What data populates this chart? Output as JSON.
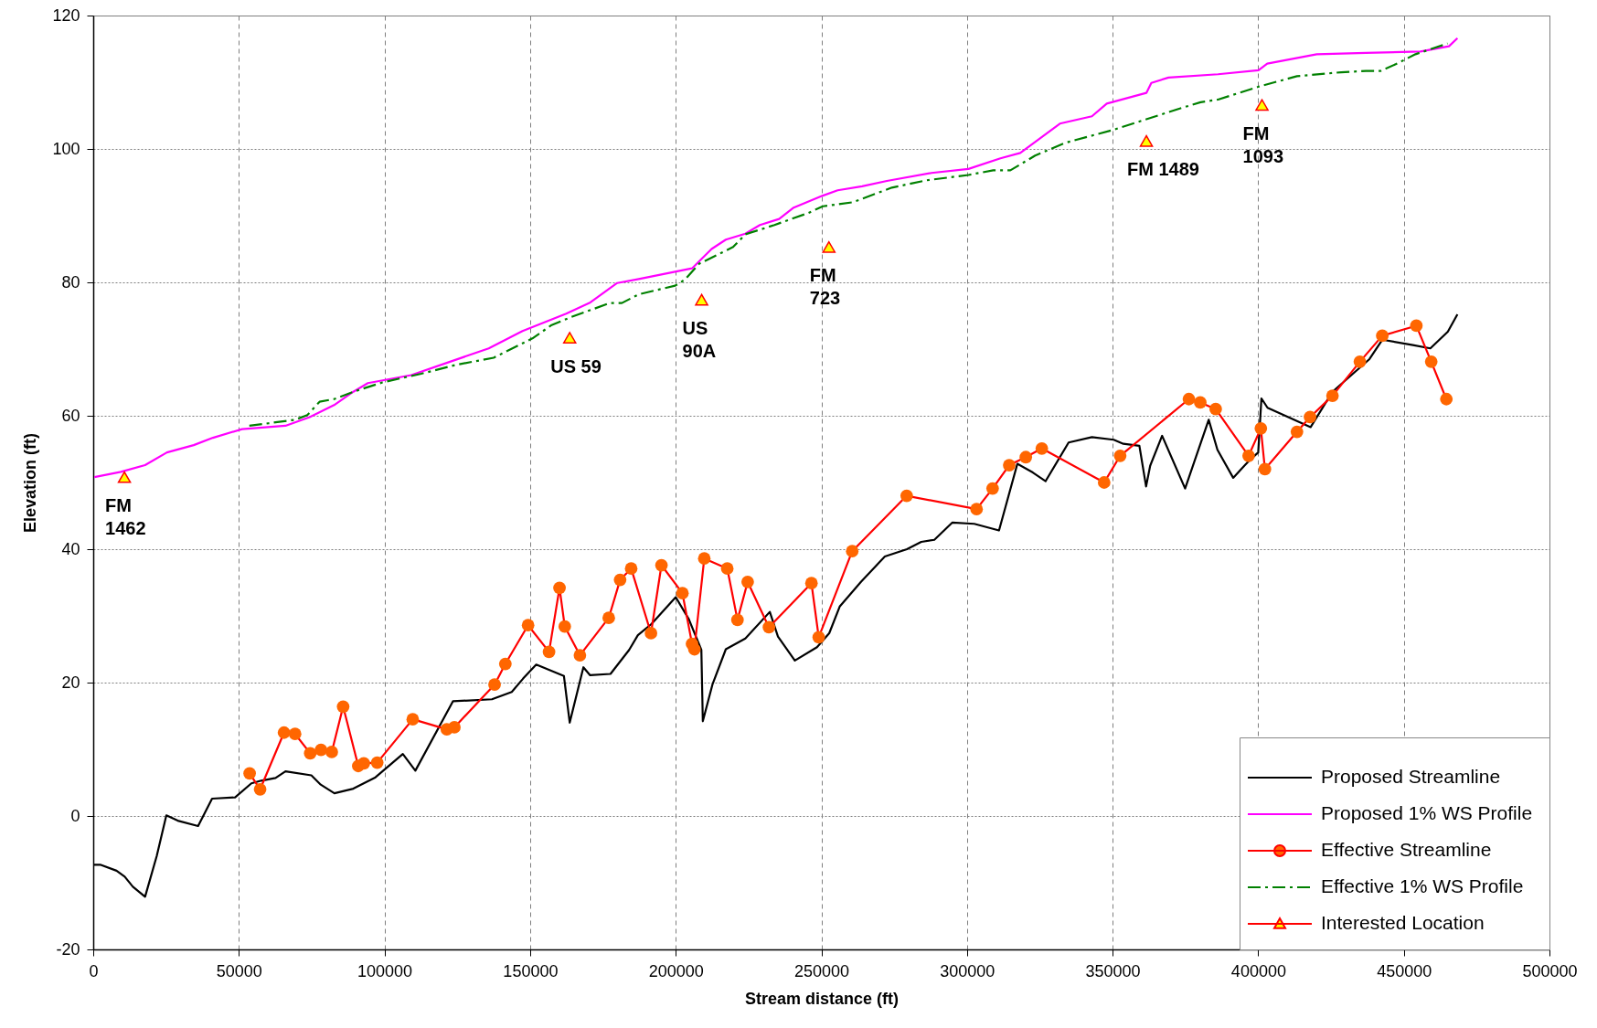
{
  "chart_data": {
    "type": "line",
    "xlabel": "Stream distance (ft)",
    "ylabel": "Elevation (ft)",
    "xlim": [
      0,
      500000
    ],
    "xticks": [
      0,
      50000,
      100000,
      150000,
      200000,
      250000,
      300000,
      350000,
      400000,
      450000,
      500000
    ],
    "ylim": [
      -20,
      120
    ],
    "yticks": [
      -20,
      0,
      20,
      40,
      60,
      80,
      100,
      120
    ],
    "grid": true,
    "legend": "bottom right",
    "series": [
      {
        "name": "Proposed Streamline",
        "color": "#000000",
        "line_style": "solid",
        "x": [
          0,
          2400,
          8000,
          10800,
          13600,
          17800,
          21800,
          25100,
          29000,
          36000,
          40800,
          48700,
          54300,
          57700,
          62600,
          66000,
          74900,
          78100,
          82800,
          89300,
          96900,
          106300,
          110600,
          123500,
          136900,
          143700,
          147600,
          152100,
          161600,
          163600,
          168300,
          170600,
          177600,
          184000,
          187000,
          191700,
          200000,
          204500,
          208800,
          209300,
          212600,
          217200,
          223900,
          232300,
          235100,
          240900,
          248500,
          252700,
          256300,
          263600,
          271800,
          279400,
          284300,
          288800,
          295000,
          302500,
          311000,
          317300,
          322600,
          327000,
          334900,
          342900,
          350400,
          353700,
          359200,
          361500,
          362900,
          367000,
          374900,
          383000,
          386000,
          391400,
          396700,
          400000,
          401100,
          403200,
          418000,
          425500,
          438200,
          442600,
          453100,
          459100,
          465100,
          468400
        ],
        "values": [
          -7.3,
          -7.3,
          -8.2,
          -9.1,
          -10.6,
          -12.1,
          -6.0,
          0.1,
          -0.7,
          -1.5,
          2.6,
          2.8,
          4.9,
          5.3,
          5.7,
          6.7,
          6.1,
          4.7,
          3.4,
          4.1,
          5.8,
          9.3,
          6.8,
          17.2,
          17.5,
          18.6,
          20.6,
          22.7,
          21.0,
          14.0,
          22.3,
          21.1,
          21.3,
          24.9,
          27.1,
          28.8,
          32.8,
          29.5,
          24.9,
          14.2,
          19.7,
          25.0,
          26.6,
          30.6,
          26.9,
          23.3,
          25.3,
          27.4,
          31.4,
          35.1,
          38.9,
          40.0,
          41.1,
          41.4,
          44.0,
          43.8,
          42.8,
          52.8,
          51.5,
          50.2,
          56.0,
          56.8,
          56.4,
          55.8,
          55.5,
          49.4,
          52.5,
          57.0,
          49.1,
          59.4,
          54.9,
          50.7,
          53.2,
          54.5,
          62.6,
          61.2,
          58.3,
          63.6,
          68.5,
          71.4,
          70.6,
          70.1,
          72.6,
          75.2
        ]
      },
      {
        "name": "Proposed 1% WS Profile",
        "color": "#ff00ff",
        "line_style": "solid",
        "x": [
          400,
          9500,
          17800,
          25300,
          34500,
          41100,
          51100,
          66000,
          74300,
          82700,
          89300,
          94300,
          109200,
          122500,
          135800,
          147400,
          162400,
          170700,
          179900,
          187300,
          205600,
          212300,
          217200,
          223900,
          228900,
          235500,
          240500,
          250500,
          255600,
          264000,
          272500,
          287800,
          300500,
          311500,
          318300,
          325100,
          331900,
          342900,
          348000,
          361600,
          363300,
          369200,
          386200,
          400100,
          403100,
          420100,
          437000,
          455700,
          465500,
          468400
        ],
        "values": [
          50.8,
          51.6,
          52.6,
          54.5,
          55.6,
          56.7,
          58.0,
          58.5,
          59.8,
          61.6,
          63.6,
          64.9,
          66.1,
          68.1,
          70.1,
          72.7,
          75.3,
          77.0,
          79.9,
          80.5,
          82.1,
          85.0,
          86.4,
          87.3,
          88.6,
          89.5,
          91.2,
          93.0,
          93.8,
          94.4,
          95.2,
          96.4,
          97.0,
          98.6,
          99.4,
          101.6,
          103.8,
          104.9,
          106.8,
          108.4,
          109.9,
          110.7,
          111.2,
          111.8,
          112.8,
          114.2,
          114.4,
          114.6,
          115.4,
          116.6
        ]
      },
      {
        "name": "Effective Streamline",
        "color": "#ff0000",
        "line_style": "solid",
        "marker": "circle",
        "x": [
          53700,
          57300,
          65500,
          69300,
          74500,
          78200,
          81900,
          85800,
          91000,
          92900,
          97500,
          109700,
          121400,
          124000,
          137800,
          141500,
          149300,
          156500,
          160100,
          161900,
          167100,
          177000,
          180900,
          184700,
          191500,
          195100,
          202300,
          205600,
          206400,
          209800,
          217700,
          221200,
          224700,
          232000,
          246600,
          249100,
          260600,
          279300,
          303300,
          308800,
          314500,
          320200,
          325700,
          347100,
          352600,
          376200,
          380100,
          385400,
          396700,
          400900,
          402300,
          413300,
          417800,
          425500,
          434900,
          442600,
          454300,
          459400,
          464600
        ],
        "values": [
          6.4,
          4.0,
          12.5,
          12.3,
          9.4,
          9.9,
          9.6,
          16.4,
          7.5,
          7.9,
          8.0,
          14.5,
          13.0,
          13.3,
          19.7,
          22.8,
          28.6,
          24.6,
          34.2,
          28.4,
          24.1,
          29.7,
          35.4,
          37.1,
          27.4,
          37.6,
          33.4,
          25.8,
          25.0,
          38.6,
          37.1,
          29.4,
          35.1,
          28.3,
          34.9,
          26.8,
          39.7,
          48.0,
          46.0,
          49.1,
          52.6,
          53.8,
          55.1,
          50.0,
          54.0,
          62.5,
          62.0,
          61.0,
          54.0,
          58.1,
          52.0,
          57.6,
          59.8,
          63.0,
          68.1,
          72.0,
          73.5,
          68.1,
          62.5
        ],
        "colors": [
          "#ff6600",
          "#ff6600",
          "#ff6600",
          "#ff6600",
          "#ff6600",
          "#ff6600",
          "#ff6600",
          "#ff6600",
          "#ff6600",
          "#ff6600",
          "#ff6600",
          "#ff6600",
          "#ff6600",
          "#ff6600",
          "#ff6600",
          "#ff6600",
          "#ff6600",
          "#ff6600",
          "#ff6600",
          "#ff6600",
          "#ff6600",
          "#ff6600",
          "#ff6600",
          "#ff6600",
          "#ff6600",
          "#ff6600",
          "#ff6600",
          "#ff6600",
          "#ff6600",
          "#ff6600",
          "#ff6600",
          "#ff6600",
          "#ff6600",
          "#ff6600",
          "#ff6600",
          "#ff6600",
          "#ff6600",
          "#ff6600",
          "#ff6600",
          "#ff6600",
          "#ff6600",
          "#ff6600",
          "#ff6600",
          "#ff6600",
          "#ff6600",
          "#ff6600",
          "#ff6600",
          "#ff6600",
          "#ff6600",
          "#ff6600",
          "#ff6600",
          "#ff6600",
          "#ff6600",
          "#ff6600",
          "#ff6600",
          "#ff6600",
          "#ff6600",
          "#ff6600",
          "#ff6600"
        ]
      },
      {
        "name": "Effective 1% WS Profile",
        "color": "#008000",
        "line_style": "dashdot",
        "x": [
          53600,
          69300,
          73500,
          77700,
          82700,
          89300,
          99300,
          112600,
          124200,
          137500,
          150800,
          157400,
          164100,
          177400,
          181500,
          187300,
          199800,
          203100,
          208100,
          219700,
          223900,
          233900,
          245500,
          250500,
          260700,
          274200,
          286100,
          300500,
          309000,
          314900,
          323400,
          333600,
          350500,
          372600,
          380200,
          386200,
          400600,
          413300,
          428500,
          437000,
          442100,
          447200,
          454000,
          465000
        ],
        "values": [
          58.5,
          59.4,
          60.1,
          62.1,
          62.5,
          63.6,
          65.0,
          66.3,
          67.6,
          68.7,
          71.6,
          73.6,
          74.8,
          76.9,
          76.9,
          78.2,
          79.5,
          80.4,
          82.8,
          85.3,
          87.2,
          88.6,
          90.4,
          91.4,
          92.0,
          94.2,
          95.3,
          96.1,
          96.8,
          96.8,
          99.0,
          100.9,
          102.9,
          106.0,
          107.0,
          107.4,
          109.4,
          110.9,
          111.5,
          111.7,
          111.7,
          112.7,
          114.2,
          115.8
        ]
      },
      {
        "name": "Interested Location",
        "type": "scatter",
        "color": "#ff0000",
        "marker": "triangle",
        "x": [
          10700,
          163600,
          208900,
          252600,
          361600,
          401300
        ],
        "values": [
          50.8,
          71.7,
          77.4,
          85.3,
          101.2,
          106.6
        ],
        "colors": [
          "#ffff00",
          "#ffff00",
          "#ffff00",
          "#ffff00",
          "#ffff00",
          "#ffff00"
        ]
      }
    ],
    "annotations": [
      {
        "text": "FM\n1462",
        "x": 10700,
        "y": 50.8
      },
      {
        "text": "US 59",
        "x": 163600,
        "y": 71.7
      },
      {
        "text": "US\n90A",
        "x": 208900,
        "y": 77.4
      },
      {
        "text": "FM\n723",
        "x": 252600,
        "y": 85.3
      },
      {
        "text": "FM 1489",
        "x": 361600,
        "y": 101.2
      },
      {
        "text": "FM\n1093",
        "x": 401300,
        "y": 106.6
      }
    ]
  }
}
